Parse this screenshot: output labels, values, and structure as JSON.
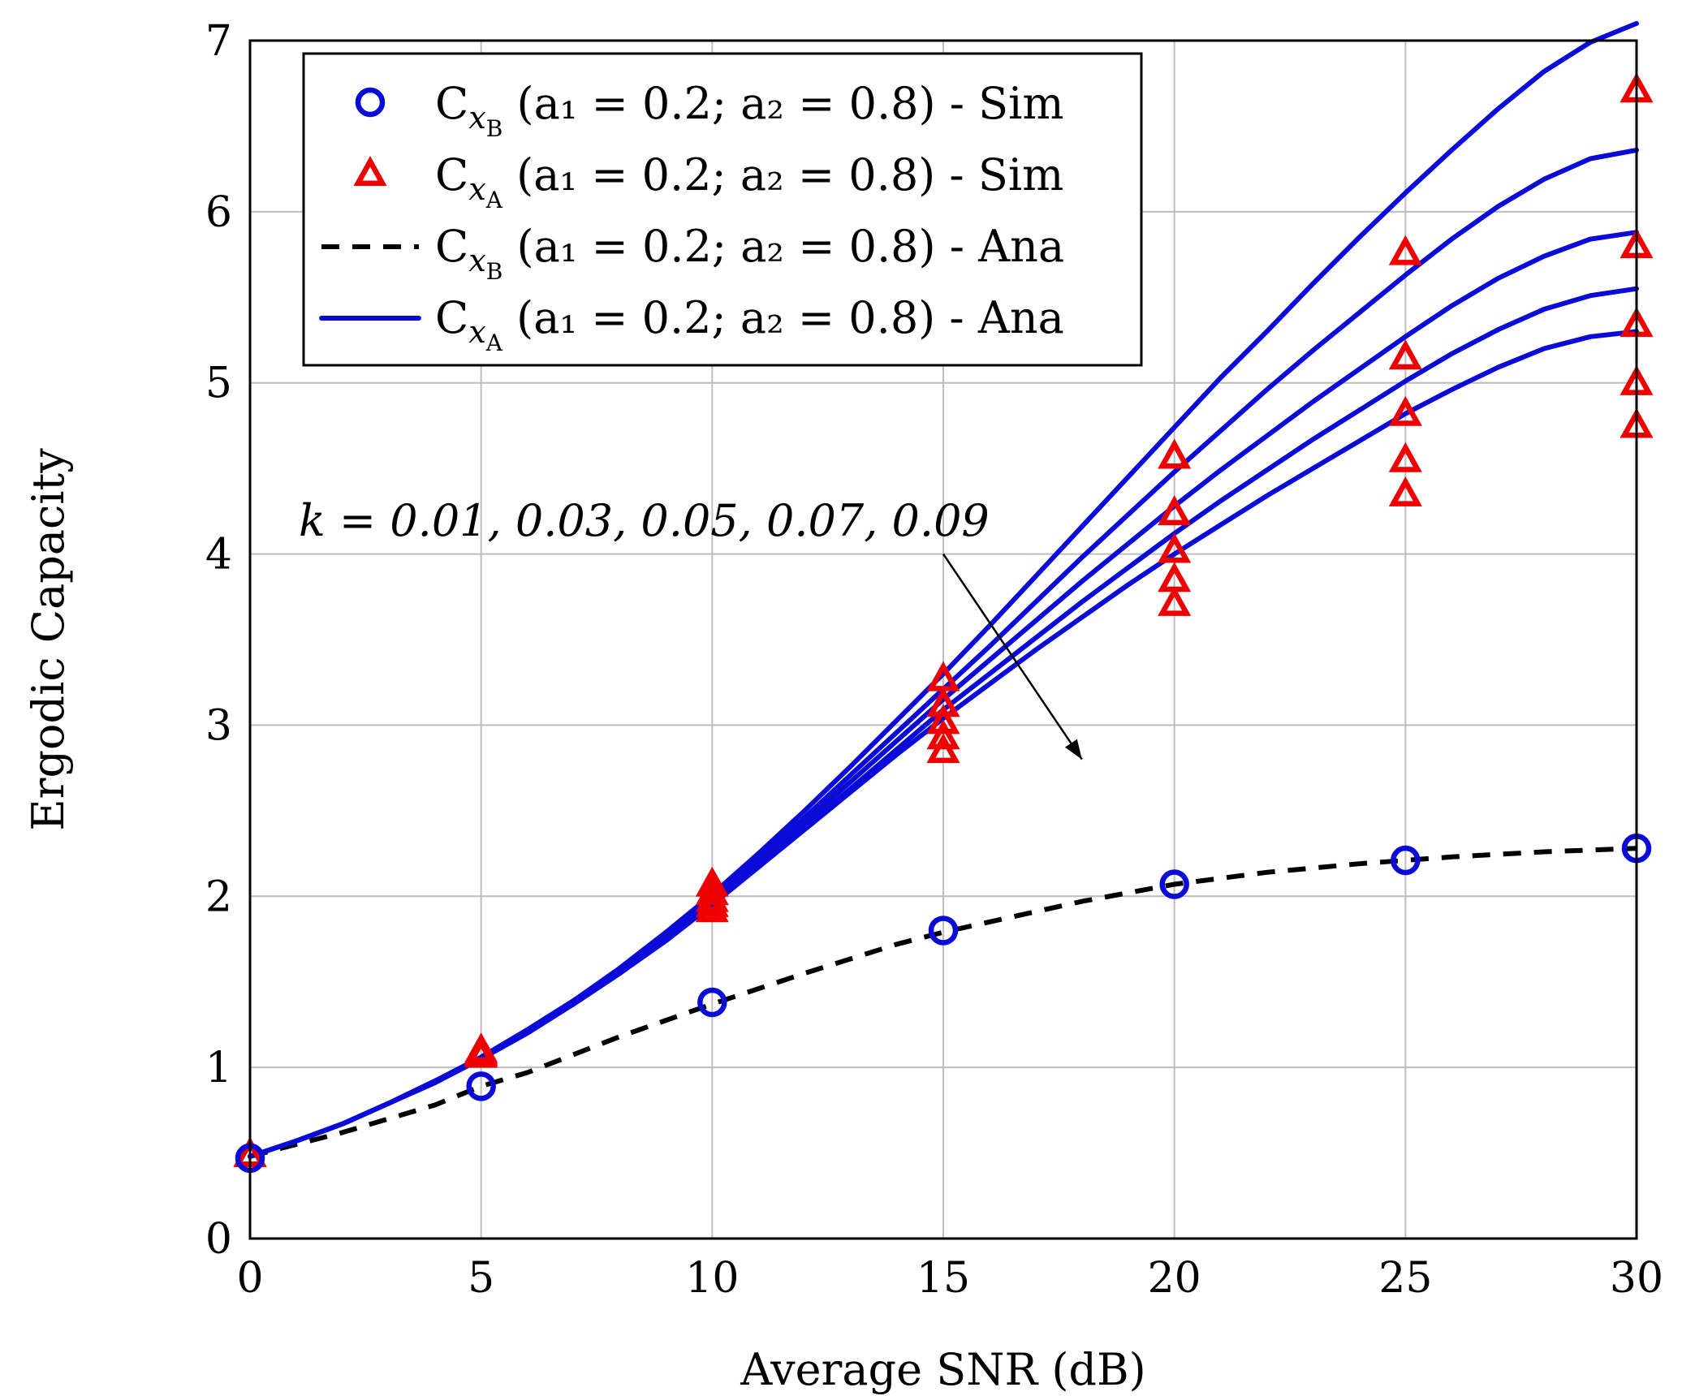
{
  "chart_data": {
    "type": "line",
    "xlabel": "Average SNR (dB)",
    "ylabel": "Ergodic Capacity",
    "xlim": [
      0,
      30
    ],
    "ylim": [
      0,
      7
    ],
    "xticks": [
      0,
      5,
      10,
      15,
      20,
      25,
      30
    ],
    "yticks": [
      0,
      1,
      2,
      3,
      4,
      5,
      6,
      7
    ],
    "grid": true,
    "legend_position": "top-left",
    "legend": [
      {
        "id": "sim-b",
        "symbol": "circle",
        "color": "#0b0bd8",
        "base": "C",
        "sub": "x",
        "subsub": "B",
        "params": "(a₁ = 0.2; a₂ = 0.8) - Sim"
      },
      {
        "id": "sim-a",
        "symbol": "triangle",
        "color": "#ee0000",
        "base": "C",
        "sub": "x",
        "subsub": "A",
        "params": "(a₁ = 0.2; a₂ = 0.8) - Sim"
      },
      {
        "id": "ana-b",
        "symbol": "dashed",
        "color": "#000000",
        "base": "C",
        "sub": "x",
        "subsub": "B",
        "params": "(a₁ = 0.2; a₂ = 0.8) - Ana"
      },
      {
        "id": "ana-a",
        "symbol": "solid",
        "color": "#0b0bd8",
        "base": "C",
        "sub": "x",
        "subsub": "A",
        "params": "(a₁ = 0.2; a₂ = 0.8) - Ana"
      }
    ],
    "annotation": {
      "text": "k = 0.01, 0.03, 0.05, 0.07, 0.09",
      "arrow_from": [
        15,
        4
      ],
      "arrow_to": [
        18,
        2.8
      ]
    },
    "series": [
      {
        "name": "C_xB Ana",
        "style": "dashed",
        "x": [
          0,
          2,
          4,
          5,
          6,
          8,
          10,
          12,
          14,
          15,
          16,
          18,
          20,
          22,
          24,
          25,
          26,
          28,
          30
        ],
        "values": [
          0.48,
          0.62,
          0.78,
          0.89,
          0.97,
          1.18,
          1.37,
          1.55,
          1.72,
          1.79,
          1.85,
          1.97,
          2.07,
          2.14,
          2.19,
          2.21,
          2.23,
          2.26,
          2.28
        ]
      },
      {
        "name": "C_xB Sim",
        "style": "circle",
        "x": [
          0,
          5,
          10,
          15,
          20,
          25,
          30
        ],
        "values": [
          0.47,
          0.89,
          1.38,
          1.8,
          2.07,
          2.21,
          2.28
        ]
      },
      {
        "name": "C_xA Ana k=0.01",
        "style": "solid",
        "x": [
          0,
          1,
          2,
          3,
          4,
          5,
          6,
          7,
          8,
          9,
          10,
          11,
          12,
          13,
          14,
          15,
          16,
          17,
          18,
          19,
          20,
          21,
          22,
          23,
          24,
          25,
          26,
          27,
          28,
          29,
          30
        ],
        "values": [
          0.48,
          0.57,
          0.67,
          0.79,
          0.92,
          1.06,
          1.22,
          1.39,
          1.58,
          1.79,
          2.01,
          2.25,
          2.5,
          2.76,
          3.03,
          3.3,
          3.58,
          3.87,
          4.16,
          4.45,
          4.74,
          5.03,
          5.3,
          5.58,
          5.85,
          6.11,
          6.36,
          6.6,
          6.82,
          6.99,
          7.1
        ]
      },
      {
        "name": "C_xA Ana k=0.03",
        "style": "solid",
        "x": [
          0,
          1,
          2,
          3,
          4,
          5,
          6,
          7,
          8,
          9,
          10,
          11,
          12,
          13,
          14,
          15,
          16,
          17,
          18,
          19,
          20,
          21,
          22,
          23,
          24,
          25,
          26,
          27,
          28,
          29,
          30
        ],
        "values": [
          0.48,
          0.57,
          0.67,
          0.79,
          0.92,
          1.06,
          1.22,
          1.39,
          1.57,
          1.77,
          1.99,
          2.22,
          2.46,
          2.71,
          2.96,
          3.21,
          3.46,
          3.72,
          3.98,
          4.23,
          4.48,
          4.72,
          4.96,
          5.19,
          5.41,
          5.63,
          5.84,
          6.03,
          6.19,
          6.31,
          6.36
        ]
      },
      {
        "name": "C_xA Ana k=0.05",
        "style": "solid",
        "x": [
          0,
          1,
          2,
          3,
          4,
          5,
          6,
          7,
          8,
          9,
          10,
          11,
          12,
          13,
          14,
          15,
          16,
          17,
          18,
          19,
          20,
          21,
          22,
          23,
          24,
          25,
          26,
          27,
          28,
          29,
          30
        ],
        "values": [
          0.48,
          0.57,
          0.67,
          0.79,
          0.92,
          1.05,
          1.21,
          1.38,
          1.56,
          1.76,
          1.97,
          2.2,
          2.43,
          2.67,
          2.91,
          3.15,
          3.38,
          3.61,
          3.84,
          4.06,
          4.28,
          4.49,
          4.69,
          4.89,
          5.08,
          5.27,
          5.45,
          5.61,
          5.74,
          5.84,
          5.88
        ]
      },
      {
        "name": "C_xA Ana k=0.07",
        "style": "solid",
        "x": [
          0,
          1,
          2,
          3,
          4,
          5,
          6,
          7,
          8,
          9,
          10,
          11,
          12,
          13,
          14,
          15,
          16,
          17,
          18,
          19,
          20,
          21,
          22,
          23,
          24,
          25,
          26,
          27,
          28,
          29,
          30
        ],
        "values": [
          0.48,
          0.57,
          0.67,
          0.79,
          0.92,
          1.05,
          1.21,
          1.37,
          1.55,
          1.75,
          1.96,
          2.18,
          2.4,
          2.63,
          2.86,
          3.09,
          3.3,
          3.51,
          3.72,
          3.92,
          4.12,
          4.31,
          4.49,
          4.67,
          4.84,
          5.01,
          5.17,
          5.31,
          5.43,
          5.51,
          5.55
        ]
      },
      {
        "name": "C_xA Ana k=0.09",
        "style": "solid",
        "x": [
          0,
          1,
          2,
          3,
          4,
          5,
          6,
          7,
          8,
          9,
          10,
          11,
          12,
          13,
          14,
          15,
          16,
          17,
          18,
          19,
          20,
          21,
          22,
          23,
          24,
          25,
          26,
          27,
          28,
          29,
          30
        ],
        "values": [
          0.48,
          0.57,
          0.67,
          0.79,
          0.91,
          1.05,
          1.2,
          1.37,
          1.55,
          1.74,
          1.95,
          2.17,
          2.39,
          2.61,
          2.83,
          3.04,
          3.24,
          3.44,
          3.63,
          3.82,
          4.0,
          4.17,
          4.34,
          4.5,
          4.66,
          4.82,
          4.96,
          5.09,
          5.2,
          5.27,
          5.3
        ]
      },
      {
        "name": "C_xA Sim k=0.01",
        "style": "triangle",
        "x": [
          0,
          5,
          10,
          15,
          20,
          25,
          30
        ],
        "values": [
          0.48,
          1.09,
          2.06,
          3.26,
          4.56,
          5.75,
          6.7
        ]
      },
      {
        "name": "C_xA Sim k=0.03",
        "style": "triangle",
        "x": [
          0,
          5,
          10,
          15,
          20,
          25,
          30
        ],
        "values": [
          0.48,
          1.08,
          2.01,
          3.11,
          4.23,
          5.14,
          5.79
        ]
      },
      {
        "name": "C_xA Sim k=0.05",
        "style": "triangle",
        "x": [
          0,
          5,
          10,
          15,
          20,
          25,
          30
        ],
        "values": [
          0.48,
          1.07,
          1.97,
          3.01,
          4.01,
          4.81,
          5.33
        ]
      },
      {
        "name": "C_xA Sim k=0.07",
        "style": "triangle",
        "x": [
          0,
          5,
          10,
          15,
          20,
          25,
          30
        ],
        "values": [
          0.48,
          1.07,
          1.94,
          2.92,
          3.84,
          4.54,
          4.99
        ]
      },
      {
        "name": "C_xA Sim k=0.09",
        "style": "triangle",
        "x": [
          0,
          5,
          10,
          15,
          20,
          25,
          30
        ],
        "values": [
          0.48,
          1.06,
          1.91,
          2.84,
          3.7,
          4.34,
          4.74
        ]
      }
    ]
  }
}
